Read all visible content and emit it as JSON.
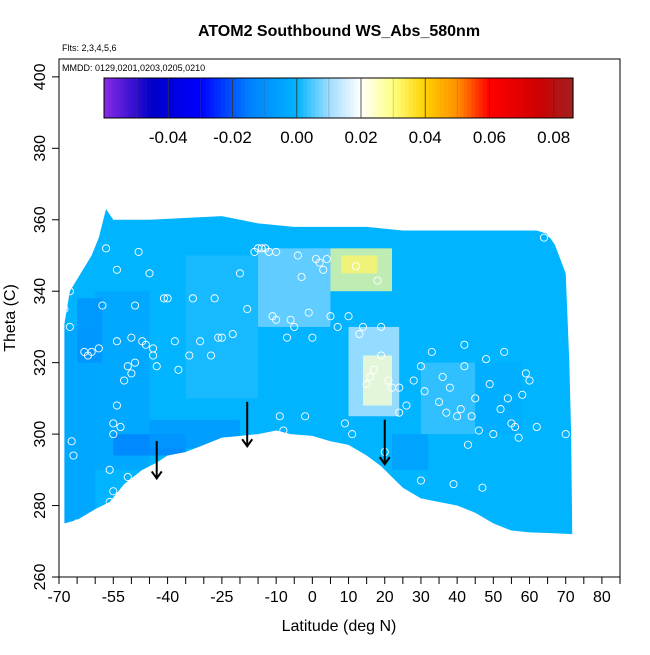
{
  "chart_data": {
    "type": "heatmap",
    "title": "ATOM2 Southbound WS_Abs_580nm",
    "annotations": {
      "flights": "Flts: 2,3,4,5,6",
      "dates": "MMDD: 0129,0201,0203,0205,0210"
    },
    "xlabel": "Latitude (deg N)",
    "ylabel": "Theta (C)",
    "xlim": [
      -70,
      85
    ],
    "ylim": [
      260,
      405
    ],
    "x_ticks": [
      -70,
      -55,
      -40,
      -25,
      -10,
      0,
      10,
      20,
      30,
      40,
      50,
      60,
      70,
      80
    ],
    "x_minor_ticks": [
      -65,
      -60,
      -50,
      -45,
      -35,
      -30,
      -20,
      -15,
      -5,
      5,
      15,
      25,
      35,
      45,
      55,
      65,
      75,
      85
    ],
    "y_ticks": [
      260,
      280,
      300,
      320,
      340,
      360,
      380,
      400
    ],
    "colorbar": {
      "min": -0.06,
      "max": 0.086,
      "ticks": [
        -0.04,
        -0.02,
        0.0,
        0.02,
        0.04,
        0.06,
        0.08
      ],
      "tick_labels": [
        "-0.04",
        "-0.02",
        "0.00",
        "0.02",
        "0.04",
        "0.06",
        "0.08"
      ],
      "stops": [
        {
          "v": -0.06,
          "c": "#8a2be2"
        },
        {
          "v": -0.045,
          "c": "#0000c8"
        },
        {
          "v": -0.03,
          "c": "#0000ff"
        },
        {
          "v": -0.015,
          "c": "#0080ff"
        },
        {
          "v": 0.0,
          "c": "#00b4ff"
        },
        {
          "v": 0.01,
          "c": "#a0dcff"
        },
        {
          "v": 0.02,
          "c": "#ffffff"
        },
        {
          "v": 0.03,
          "c": "#ffff80"
        },
        {
          "v": 0.04,
          "c": "#ffd000"
        },
        {
          "v": 0.05,
          "c": "#ff9000"
        },
        {
          "v": 0.06,
          "c": "#ff0000"
        },
        {
          "v": 0.075,
          "c": "#d00000"
        },
        {
          "v": 0.086,
          "c": "#a02020"
        }
      ]
    },
    "coverage": {
      "upper": [
        [
          -68.5,
          331
        ],
        [
          -67,
          340
        ],
        [
          -64,
          345
        ],
        [
          -61,
          350
        ],
        [
          -59,
          355
        ],
        [
          -57.5,
          361
        ],
        [
          -57,
          363
        ],
        [
          -55,
          360
        ],
        [
          -45,
          360
        ],
        [
          -25,
          361
        ],
        [
          -15,
          359
        ],
        [
          -5,
          358
        ],
        [
          5,
          358
        ],
        [
          15,
          358
        ],
        [
          25,
          357
        ],
        [
          35,
          357
        ],
        [
          45,
          357
        ],
        [
          55,
          357
        ],
        [
          62,
          357
        ],
        [
          65,
          356
        ],
        [
          67,
          353
        ],
        [
          70,
          345
        ],
        [
          71,
          320
        ],
        [
          71.5,
          300
        ],
        [
          71.8,
          272
        ]
      ],
      "lower": [
        [
          -68.5,
          275
        ],
        [
          -65,
          276
        ],
        [
          -60,
          279
        ],
        [
          -56,
          281
        ],
        [
          -52,
          286
        ],
        [
          -47,
          290
        ],
        [
          -43,
          292
        ],
        [
          -40,
          294
        ],
        [
          -35,
          295
        ],
        [
          -30,
          297
        ],
        [
          -25,
          299
        ],
        [
          -20,
          299.5
        ],
        [
          -15,
          300
        ],
        [
          -10,
          301
        ],
        [
          -6,
          300
        ],
        [
          0,
          299.5
        ],
        [
          5,
          298
        ],
        [
          10,
          297
        ],
        [
          15,
          294
        ],
        [
          19,
          291
        ],
        [
          22,
          288
        ],
        [
          25,
          285
        ],
        [
          30,
          282
        ],
        [
          35,
          281
        ],
        [
          40,
          280
        ],
        [
          45,
          278
        ],
        [
          50,
          275
        ],
        [
          55,
          273
        ],
        [
          60,
          272.5
        ],
        [
          65,
          272.3
        ],
        [
          71.8,
          272
        ]
      ]
    },
    "cells": [
      {
        "x": [
          -69,
          -60
        ],
        "y": [
          275,
          330
        ],
        "v": -0.005
      },
      {
        "x": [
          -60,
          -45
        ],
        "y": [
          290,
          340
        ],
        "v": -0.004
      },
      {
        "x": [
          -55,
          -35
        ],
        "y": [
          294,
          300
        ],
        "v": -0.015
      },
      {
        "x": [
          -45,
          -20
        ],
        "y": [
          296,
          304
        ],
        "v": -0.008
      },
      {
        "x": [
          -35,
          -15
        ],
        "y": [
          310,
          350
        ],
        "v": 0.002
      },
      {
        "x": [
          -15,
          5
        ],
        "y": [
          330,
          352
        ],
        "v": 0.008
      },
      {
        "x": [
          5,
          22
        ],
        "y": [
          340,
          352
        ],
        "v": 0.028
      },
      {
        "x": [
          8,
          18
        ],
        "y": [
          345,
          350
        ],
        "v": 0.032
      },
      {
        "x": [
          10,
          24
        ],
        "y": [
          305,
          330
        ],
        "v": 0.014
      },
      {
        "x": [
          14,
          22
        ],
        "y": [
          308,
          322
        ],
        "v": 0.024
      },
      {
        "x": [
          22,
          32
        ],
        "y": [
          290,
          300
        ],
        "v": -0.006
      },
      {
        "x": [
          30,
          45
        ],
        "y": [
          300,
          320
        ],
        "v": 0.004
      },
      {
        "x": [
          45,
          58
        ],
        "y": [
          300,
          320
        ],
        "v": -0.002
      },
      {
        "x": [
          -65,
          -58
        ],
        "y": [
          320,
          338
        ],
        "v": -0.01
      }
    ],
    "points": [
      [
        -68.5,
        335
      ],
      [
        -67,
        340
      ],
      [
        -67,
        330
      ],
      [
        -66.5,
        298
      ],
      [
        -66,
        294
      ],
      [
        -65,
        275
      ],
      [
        -63,
        323
      ],
      [
        -62,
        322
      ],
      [
        -61,
        323
      ],
      [
        -59,
        324
      ],
      [
        -58,
        336
      ],
      [
        -57,
        352
      ],
      [
        -56,
        290
      ],
      [
        -56,
        281
      ],
      [
        -55,
        284
      ],
      [
        -55,
        300
      ],
      [
        -55,
        303
      ],
      [
        -54,
        346
      ],
      [
        -54,
        326
      ],
      [
        -54,
        308
      ],
      [
        -53,
        302
      ],
      [
        -52,
        315
      ],
      [
        -51,
        319
      ],
      [
        -51,
        288
      ],
      [
        -50,
        317
      ],
      [
        -50,
        327
      ],
      [
        -49,
        320
      ],
      [
        -49,
        336
      ],
      [
        -48,
        351
      ],
      [
        -47,
        326
      ],
      [
        -46,
        325
      ],
      [
        -45,
        345
      ],
      [
        -44,
        324
      ],
      [
        -44,
        322
      ],
      [
        -43,
        319
      ],
      [
        -42,
        291
      ],
      [
        -41,
        338
      ],
      [
        -40,
        338
      ],
      [
        -38,
        326
      ],
      [
        -37,
        318
      ],
      [
        -36,
        292
      ],
      [
        -34,
        322
      ],
      [
        -33,
        338
      ],
      [
        -31,
        326
      ],
      [
        -30,
        295
      ],
      [
        -28,
        322
      ],
      [
        -27,
        338
      ],
      [
        -26,
        327
      ],
      [
        -25,
        327
      ],
      [
        -24,
        298
      ],
      [
        -22,
        328
      ],
      [
        -20,
        345
      ],
      [
        -18,
        335
      ],
      [
        -16,
        351
      ],
      [
        -15,
        352
      ],
      [
        -14,
        352
      ],
      [
        -13,
        352
      ],
      [
        -12,
        351
      ],
      [
        -11,
        333
      ],
      [
        -10,
        351
      ],
      [
        -10,
        332
      ],
      [
        -9,
        305
      ],
      [
        -8,
        301
      ],
      [
        -7,
        327
      ],
      [
        -6,
        332
      ],
      [
        -5,
        330
      ],
      [
        -4,
        350
      ],
      [
        -3,
        344
      ],
      [
        -2,
        305
      ],
      [
        -1,
        334
      ],
      [
        0,
        327
      ],
      [
        1,
        349
      ],
      [
        2,
        348
      ],
      [
        3,
        346
      ],
      [
        4,
        349
      ],
      [
        5,
        333
      ],
      [
        7,
        330
      ],
      [
        9,
        303
      ],
      [
        10,
        333
      ],
      [
        11,
        300
      ],
      [
        12,
        347
      ],
      [
        13,
        328
      ],
      [
        14,
        330
      ],
      [
        15,
        314
      ],
      [
        16,
        316
      ],
      [
        17,
        318
      ],
      [
        18,
        343
      ],
      [
        19,
        322
      ],
      [
        19,
        330
      ],
      [
        20,
        295
      ],
      [
        21,
        315
      ],
      [
        22,
        313
      ],
      [
        24,
        313
      ],
      [
        24,
        306
      ],
      [
        26,
        308
      ],
      [
        28,
        315
      ],
      [
        30,
        319
      ],
      [
        30,
        287
      ],
      [
        31,
        312
      ],
      [
        33,
        323
      ],
      [
        35,
        309
      ],
      [
        36,
        316
      ],
      [
        37,
        306
      ],
      [
        38,
        313
      ],
      [
        39,
        286
      ],
      [
        40,
        305
      ],
      [
        41,
        307
      ],
      [
        42,
        325
      ],
      [
        42,
        319
      ],
      [
        43,
        297
      ],
      [
        44,
        305
      ],
      [
        45,
        310
      ],
      [
        46,
        301
      ],
      [
        47,
        285
      ],
      [
        48,
        321
      ],
      [
        49,
        314
      ],
      [
        50,
        300
      ],
      [
        52,
        307
      ],
      [
        53,
        323
      ],
      [
        54,
        310
      ],
      [
        55,
        303
      ],
      [
        56,
        302
      ],
      [
        57,
        299
      ],
      [
        58,
        311
      ],
      [
        59,
        317
      ],
      [
        60,
        315
      ],
      [
        62,
        302
      ],
      [
        64,
        355
      ],
      [
        66,
        356
      ],
      [
        70,
        300
      ]
    ],
    "arrows": [
      {
        "x": -43,
        "y_top": 293,
        "y_bottom": 289
      },
      {
        "x": -18,
        "y_top": 304,
        "y_bottom": 298
      },
      {
        "x": 20,
        "y_top": 299,
        "y_bottom": 293
      }
    ]
  }
}
